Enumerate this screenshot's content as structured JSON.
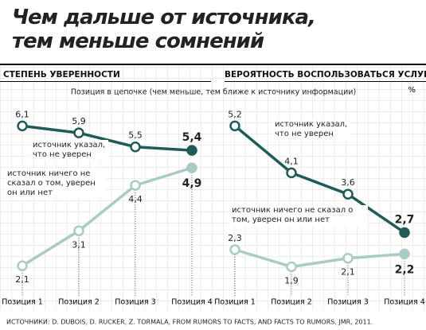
{
  "title": "Чем дальше от источника, тем меньше сомнений",
  "subtitle": "Позиция в цепочке (чем меньше, тем ближе к источнику информации)",
  "source": "ИСТОЧНИКИ: D. DUBOIS, D. RUCKER, Z. TORMALA, FROM RUMORS TO FACTS, AND FACTS TO RUMORS, JMR, 2011.",
  "chart_data": [
    {
      "type": "line",
      "title": "СТЕПЕНЬ УВЕРЕННОСТИ",
      "categories": [
        "Позиция 1",
        "Позиция 2",
        "Позиция 3",
        "Позиция 4"
      ],
      "ylim": [
        1.4,
        7.2
      ],
      "series": [
        {
          "name": "источник указал, что не уверен",
          "color": "#1f5b57",
          "values": [
            6.1,
            5.9,
            5.5,
            5.4
          ],
          "value_labels": [
            "6,1",
            "5,9",
            "5,5",
            "5,4"
          ]
        },
        {
          "name": "источник ничего не сказал о том, уверен он или нет",
          "color": "#a9cbc5",
          "values": [
            2.1,
            3.1,
            4.4,
            4.9
          ],
          "value_labels": [
            "2,1",
            "3,1",
            "4,4",
            "4,9"
          ]
        }
      ]
    },
    {
      "type": "line",
      "title": "ВЕРОЯТНОСТЬ ВОСПОЛЬЗОВАТЬСЯ УСЛУГАМИ",
      "unit": "%",
      "categories": [
        "Позиция 1",
        "Позиция 2",
        "Позиция 3",
        "Позиция 4"
      ],
      "ylim": [
        1.35,
        6.1
      ],
      "series": [
        {
          "name": "источник указал, что не уверен",
          "color": "#1f5b57",
          "values": [
            5.2,
            4.1,
            3.6,
            2.7
          ],
          "value_labels": [
            "5,2",
            "4,1",
            "3,6",
            "2,7"
          ]
        },
        {
          "name": "источник ничего не сказал о том, уверен он или нет",
          "color": "#a9cbc5",
          "values": [
            2.3,
            1.9,
            2.1,
            2.2
          ],
          "value_labels": [
            "2,3",
            "1,9",
            "2,1",
            "2,2"
          ]
        }
      ]
    }
  ]
}
